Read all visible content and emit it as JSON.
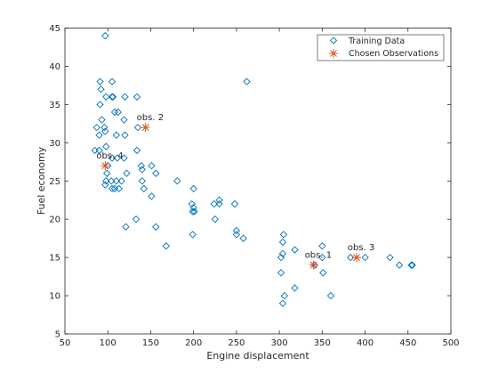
{
  "chart_data": {
    "type": "scatter",
    "xlabel": "Engine displacement",
    "ylabel": "Fuel economy",
    "xlim": [
      50,
      500
    ],
    "ylim": [
      5,
      45
    ],
    "xticks": [
      50,
      100,
      150,
      200,
      250,
      300,
      350,
      400,
      450,
      500
    ],
    "yticks": [
      5,
      10,
      15,
      20,
      25,
      30,
      35,
      40,
      45
    ],
    "grid": false,
    "legend_position": "top-right",
    "series": [
      {
        "name": "Training Data",
        "marker": "diamond",
        "color": "#0072BD",
        "points": [
          [
            97,
            44
          ],
          [
            262,
            38
          ],
          [
            91,
            38
          ],
          [
            105,
            38
          ],
          [
            92,
            37
          ],
          [
            98,
            36
          ],
          [
            105,
            36
          ],
          [
            106,
            36
          ],
          [
            120,
            36
          ],
          [
            134,
            36
          ],
          [
            91,
            35
          ],
          [
            108,
            34
          ],
          [
            112,
            34
          ],
          [
            93,
            33
          ],
          [
            119,
            33
          ],
          [
            87,
            32
          ],
          [
            96,
            32
          ],
          [
            97,
            31.5
          ],
          [
            135,
            32
          ],
          [
            90,
            31
          ],
          [
            110,
            31
          ],
          [
            120,
            31
          ],
          [
            98,
            29.5
          ],
          [
            85,
            29
          ],
          [
            90,
            29
          ],
          [
            134,
            29
          ],
          [
            111,
            28
          ],
          [
            105,
            28
          ],
          [
            119,
            28
          ],
          [
            100,
            27
          ],
          [
            139,
            27
          ],
          [
            151,
            27
          ],
          [
            99,
            26
          ],
          [
            140,
            26.5
          ],
          [
            156,
            26
          ],
          [
            98,
            25
          ],
          [
            116,
            25
          ],
          [
            122,
            26
          ],
          [
            104,
            25
          ],
          [
            110,
            25
          ],
          [
            140,
            25
          ],
          [
            97,
            24.5
          ],
          [
            105,
            24
          ],
          [
            108,
            24
          ],
          [
            113,
            24
          ],
          [
            142,
            24
          ],
          [
            200,
            24
          ],
          [
            151,
            23
          ],
          [
            181,
            25
          ],
          [
            230,
            22.5
          ],
          [
            224,
            22
          ],
          [
            230,
            22
          ],
          [
            198,
            22
          ],
          [
            248,
            22
          ],
          [
            200,
            21.5
          ],
          [
            199,
            21
          ],
          [
            201,
            21
          ],
          [
            133,
            20
          ],
          [
            225,
            20
          ],
          [
            121,
            19
          ],
          [
            156,
            19
          ],
          [
            199,
            18
          ],
          [
            250,
            18.5
          ],
          [
            250,
            18
          ],
          [
            258,
            17.5
          ],
          [
            305,
            18
          ],
          [
            304,
            17
          ],
          [
            168,
            16.5
          ],
          [
            318,
            16
          ],
          [
            350,
            16.5
          ],
          [
            304,
            15.5
          ],
          [
            302,
            15
          ],
          [
            350,
            15
          ],
          [
            383,
            15
          ],
          [
            400,
            15
          ],
          [
            429,
            15
          ],
          [
            341,
            14
          ],
          [
            440,
            14
          ],
          [
            454,
            14
          ],
          [
            455,
            14
          ],
          [
            302,
            13
          ],
          [
            351,
            13
          ],
          [
            318,
            11
          ],
          [
            306,
            10
          ],
          [
            360,
            10
          ],
          [
            304,
            9
          ]
        ]
      },
      {
        "name": "Chosen Observations",
        "marker": "asterisk",
        "color": "#D95319",
        "points": [
          [
            340,
            14,
            "obs. 1"
          ],
          [
            144,
            32,
            "obs. 2"
          ],
          [
            390,
            15,
            "obs. 3"
          ],
          [
            97,
            27,
            "obs. 4"
          ]
        ]
      }
    ]
  }
}
